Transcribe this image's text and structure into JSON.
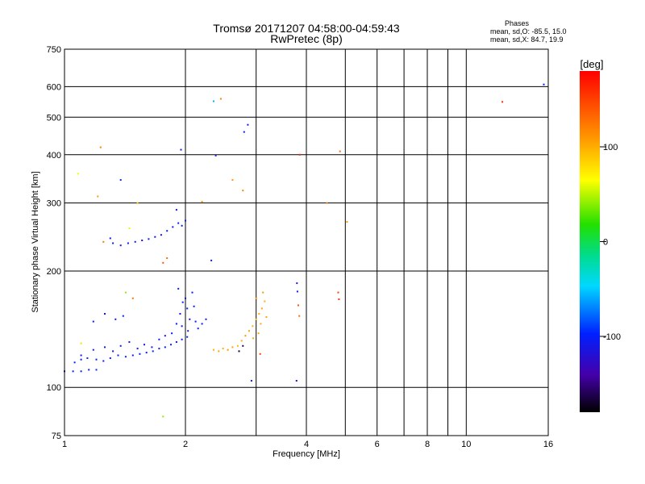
{
  "chart_data": {
    "type": "scatter",
    "title": "Tromsø 20171207 04:58:00-04:59:43",
    "subtitle": "RwPretec (8p)",
    "xlabel": "Frequency [MHz]",
    "ylabel": "Stationary phase Virtual Height [km]",
    "x_scale": "log",
    "y_scale": "log",
    "xlim": [
      1,
      16
    ],
    "ylim": [
      75,
      750
    ],
    "x_ticks": [
      1,
      2,
      4,
      6,
      8,
      10,
      16
    ],
    "x_tick_labels": [
      "1",
      "2",
      "4",
      "6",
      "8",
      "10",
      "16"
    ],
    "x_minor_ticks": [
      3,
      5,
      7,
      9
    ],
    "y_ticks": [
      75,
      100,
      200,
      300,
      400,
      500,
      600,
      750
    ],
    "y_tick_labels": [
      "75",
      "100",
      "200",
      "300",
      "400",
      "500",
      "600",
      "750"
    ],
    "grid": true,
    "phase_stats": {
      "heading": "Phases",
      "line_o": "mean, sd,O: -85.5, 15.0",
      "line_x": "mean, sd,X: 84.7, 19.9"
    },
    "colorbar": {
      "label": "[deg]",
      "range": [
        -180,
        180
      ],
      "ticks": [
        100,
        0,
        -100
      ],
      "tick_labels": [
        "100",
        "0",
        "-100"
      ]
    },
    "series": [
      {
        "points": [
          [
            1.0,
            110,
            -100
          ],
          [
            1.05,
            110,
            -100
          ],
          [
            1.1,
            110,
            -100
          ],
          [
            1.15,
            111,
            -100
          ],
          [
            1.2,
            111,
            -95
          ],
          [
            1.06,
            116,
            -95
          ],
          [
            1.1,
            118,
            -100
          ],
          [
            1.14,
            119,
            -95
          ],
          [
            1.2,
            118,
            -100
          ],
          [
            1.25,
            117,
            -100
          ],
          [
            1.3,
            119,
            -100
          ],
          [
            1.36,
            121,
            -100
          ],
          [
            1.42,
            120,
            -95
          ],
          [
            1.48,
            121,
            -100
          ],
          [
            1.54,
            122,
            -100
          ],
          [
            1.6,
            123,
            -100
          ],
          [
            1.66,
            124,
            -95
          ],
          [
            1.72,
            126,
            -100
          ],
          [
            1.78,
            127,
            -100
          ],
          [
            1.84,
            129,
            -95
          ],
          [
            1.9,
            131,
            -100
          ],
          [
            1.96,
            133,
            -100
          ],
          [
            2.02,
            135,
            -95
          ],
          [
            1.1,
            121,
            -110
          ],
          [
            1.18,
            125,
            -105
          ],
          [
            1.26,
            127,
            -100
          ],
          [
            1.32,
            124,
            -110
          ],
          [
            1.38,
            128,
            -100
          ],
          [
            1.45,
            131,
            -105
          ],
          [
            1.52,
            126,
            -100
          ],
          [
            1.58,
            129,
            -110
          ],
          [
            1.65,
            127,
            -105
          ],
          [
            1.72,
            133,
            -100
          ],
          [
            1.78,
            136,
            -110
          ],
          [
            1.85,
            138,
            -100
          ],
          [
            1.9,
            146,
            -105
          ],
          [
            1.94,
            155,
            -110
          ],
          [
            1.97,
            166,
            -100
          ],
          [
            2.0,
            170,
            -105
          ],
          [
            2.02,
            160,
            -100
          ],
          [
            2.05,
            150,
            -110
          ],
          [
            2.08,
            176,
            -105
          ],
          [
            2.1,
            162,
            -100
          ],
          [
            2.12,
            148,
            -105
          ],
          [
            2.15,
            142,
            -100
          ],
          [
            2.2,
            146,
            -105
          ],
          [
            2.25,
            150,
            -100
          ],
          [
            1.92,
            180,
            -100
          ],
          [
            1.96,
            144,
            -105
          ],
          [
            2.03,
            140,
            -110
          ],
          [
            1.18,
            148,
            -105
          ],
          [
            1.26,
            155,
            -110
          ],
          [
            1.34,
            150,
            -105
          ],
          [
            1.4,
            153,
            -100
          ],
          [
            1.32,
            236,
            -100
          ],
          [
            1.38,
            233,
            -105
          ],
          [
            1.44,
            236,
            -100
          ],
          [
            1.5,
            238,
            -100
          ],
          [
            1.56,
            240,
            -105
          ],
          [
            1.62,
            242,
            -100
          ],
          [
            1.68,
            245,
            -100
          ],
          [
            1.74,
            248,
            -105
          ],
          [
            1.8,
            254,
            -100
          ],
          [
            1.86,
            260,
            -105
          ],
          [
            1.92,
            266,
            -100
          ],
          [
            1.96,
            262,
            -105
          ],
          [
            2.0,
            270,
            -100
          ],
          [
            1.3,
            243,
            -110
          ],
          [
            1.9,
            288,
            -105
          ],
          [
            2.35,
            125,
            100
          ],
          [
            2.42,
            124,
            105
          ],
          [
            2.48,
            126,
            100
          ],
          [
            2.55,
            125,
            110
          ],
          [
            2.62,
            127,
            105
          ],
          [
            2.7,
            128,
            95
          ],
          [
            2.76,
            132,
            100
          ],
          [
            2.82,
            136,
            110
          ],
          [
            2.88,
            140,
            105
          ],
          [
            2.94,
            144,
            100
          ],
          [
            3.0,
            150,
            95
          ],
          [
            3.05,
            155,
            100
          ],
          [
            3.1,
            160,
            105
          ],
          [
            3.15,
            167,
            100
          ],
          [
            3.0,
            170,
            110
          ],
          [
            3.08,
            146,
            100
          ],
          [
            3.18,
            152,
            105
          ],
          [
            3.12,
            176,
            110
          ],
          [
            2.95,
            134,
            100
          ],
          [
            3.04,
            138,
            105
          ],
          [
            2.72,
            124,
            -170
          ],
          [
            2.78,
            128,
            -160
          ],
          [
            3.07,
            122,
            150
          ],
          [
            3.79,
            186,
            -110
          ],
          [
            3.8,
            177,
            -105
          ],
          [
            3.82,
            163,
            140
          ],
          [
            3.84,
            153,
            130
          ],
          [
            3.78,
            104,
            -110
          ],
          [
            4.8,
            176,
            150
          ],
          [
            4.82,
            169,
            155
          ],
          [
            3.85,
            400,
            165
          ],
          [
            4.85,
            408,
            130
          ],
          [
            4.5,
            300,
            120
          ],
          [
            5.05,
            268,
            110
          ],
          [
            2.92,
            104,
            -110
          ],
          [
            2.86,
            478,
            -110
          ],
          [
            2.8,
            458,
            -105
          ],
          [
            2.35,
            550,
            -60
          ],
          [
            2.45,
            558,
            120
          ],
          [
            2.38,
            398,
            -110
          ],
          [
            1.95,
            412,
            -105
          ],
          [
            1.23,
            418,
            120
          ],
          [
            1.08,
            357,
            60
          ],
          [
            1.21,
            312,
            110
          ],
          [
            1.38,
            344,
            -100
          ],
          [
            1.25,
            238,
            125
          ],
          [
            1.45,
            258,
            60
          ],
          [
            1.52,
            300,
            90
          ],
          [
            1.8,
            216,
            130
          ],
          [
            1.76,
            210,
            140
          ],
          [
            2.32,
            213,
            -105
          ],
          [
            2.62,
            344,
            110
          ],
          [
            2.78,
            323,
            120
          ],
          [
            2.2,
            302,
            115
          ],
          [
            1.76,
            84,
            40
          ],
          [
            1.48,
            170,
            125
          ],
          [
            1.1,
            130,
            80
          ],
          [
            1.42,
            176,
            40
          ],
          [
            12.3,
            548,
            160
          ],
          [
            15.6,
            608,
            -105
          ]
        ]
      }
    ]
  }
}
